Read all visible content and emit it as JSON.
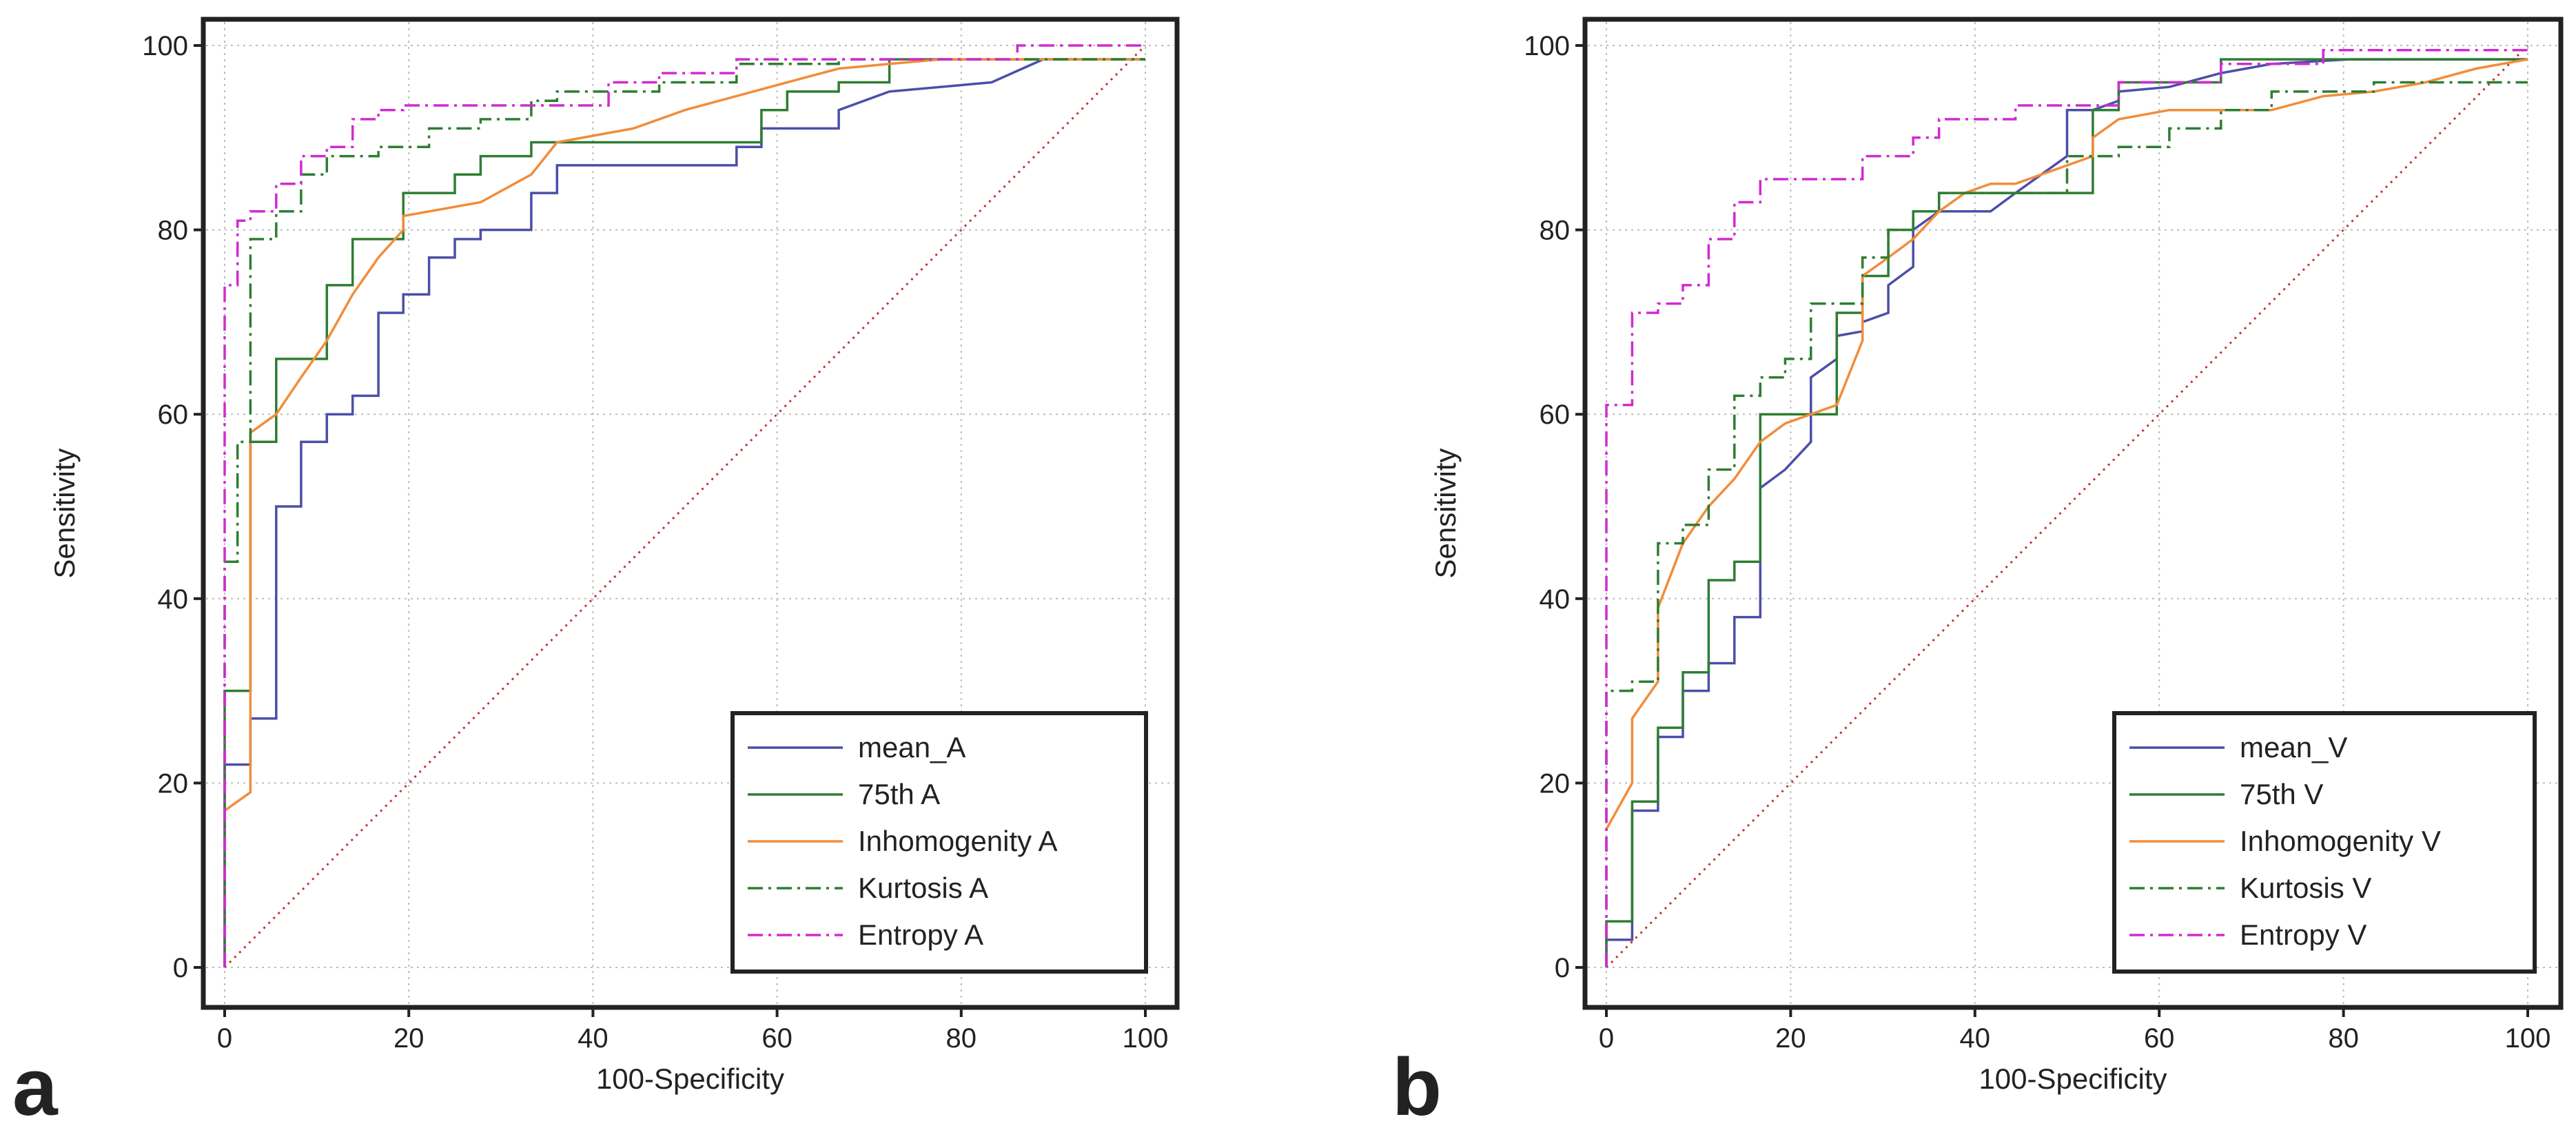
{
  "chart_data": [
    {
      "type": "line",
      "panel_label": "a",
      "xlabel": "100-Specificity",
      "ylabel": "Sensitivity",
      "xlim": [
        0,
        100
      ],
      "ylim": [
        0,
        100
      ],
      "xticks": [
        "0",
        "20",
        "40",
        "60",
        "80",
        "100"
      ],
      "yticks": [
        "0",
        "20",
        "40",
        "60",
        "80",
        "100"
      ],
      "grid": true,
      "legend_position": "bottom-right",
      "series": [
        {
          "name": "mean_A",
          "color": "#4b4fa8",
          "dash": "solid",
          "x": [
            0,
            0,
            2.8,
            2.8,
            5.6,
            5.6,
            8.3,
            8.3,
            11.1,
            11.1,
            13.9,
            13.9,
            16.7,
            16.7,
            19.4,
            19.4,
            22.2,
            22.2,
            25,
            25,
            27.8,
            27.8,
            33.3,
            33.3,
            36.1,
            36.1,
            55.6,
            55.6,
            58.3,
            58.3,
            66.7,
            66.7,
            72.2,
            83.3,
            88.9,
            100
          ],
          "y": [
            0,
            22,
            22,
            27,
            27,
            50,
            50,
            57,
            57,
            60,
            60,
            62,
            62,
            71,
            71,
            73,
            73,
            77,
            77,
            79,
            79,
            80,
            80,
            84,
            84,
            87,
            87,
            89,
            89,
            91,
            91,
            93,
            95,
            96,
            98.5,
            98.5
          ]
        },
        {
          "name": "75th A",
          "color": "#2e7d32",
          "dash": "solid",
          "x": [
            0,
            0,
            2.8,
            2.8,
            5.6,
            5.6,
            11.1,
            11.1,
            13.9,
            13.9,
            19.4,
            19.4,
            25,
            25,
            27.8,
            27.8,
            33.3,
            33.3,
            58.3,
            58.3,
            61.1,
            61.1,
            66.7,
            66.7,
            72.2,
            72.2,
            100
          ],
          "y": [
            0,
            30,
            30,
            57,
            57,
            66,
            66,
            74,
            74,
            79,
            79,
            84,
            84,
            86,
            86,
            88,
            88,
            89.5,
            89.5,
            93,
            93,
            95,
            95,
            96,
            96,
            98.5,
            98.5
          ]
        },
        {
          "name": "Inhomogenity A",
          "color": "#f28c3a",
          "dash": "solid",
          "x": [
            0,
            2.8,
            2.8,
            5.6,
            8.3,
            11.1,
            13.9,
            16.7,
            19.4,
            19.4,
            22.2,
            27.8,
            33.3,
            36.1,
            44.4,
            50,
            61.1,
            66.7,
            72.2,
            77.8,
            100
          ],
          "y": [
            17,
            19,
            58,
            60,
            64,
            68,
            73,
            77,
            80,
            81.5,
            82,
            83,
            86,
            89.5,
            91,
            93,
            96,
            97.5,
            98,
            98.5,
            98.5
          ]
        },
        {
          "name": "Kurtosis A",
          "color": "#2e7d32",
          "dash": "dashdot",
          "x": [
            0,
            0,
            1.4,
            1.4,
            2.8,
            2.8,
            5.6,
            5.6,
            8.3,
            8.3,
            11.1,
            11.1,
            16.7,
            16.7,
            22.2,
            22.2,
            27.8,
            27.8,
            33.3,
            33.3,
            36.1,
            36.1,
            47.2,
            47.2,
            55.6,
            55.6,
            66.7,
            66.7,
            100
          ],
          "y": [
            0,
            44,
            44,
            57,
            57,
            79,
            79,
            82,
            82,
            86,
            86,
            88,
            88,
            89,
            89,
            91,
            91,
            92,
            92,
            94,
            94,
            95,
            95,
            96,
            96,
            98,
            98,
            98.5,
            98.5
          ]
        },
        {
          "name": "Entropy A",
          "color": "#d12ad1",
          "dash": "dashdot",
          "x": [
            0,
            0,
            1.4,
            1.4,
            2.8,
            2.8,
            5.6,
            5.6,
            8.3,
            8.3,
            11.1,
            11.1,
            13.9,
            13.9,
            16.7,
            16.7,
            19.4,
            19.4,
            41.7,
            41.7,
            47.2,
            47.2,
            55.6,
            55.6,
            86.1,
            86.1,
            100
          ],
          "y": [
            0,
            74,
            74,
            81,
            81,
            82,
            82,
            85,
            85,
            88,
            88,
            89,
            89,
            92,
            92,
            93,
            93,
            93.5,
            93.5,
            96,
            96,
            97,
            97,
            98.5,
            98.5,
            100,
            100
          ]
        },
        {
          "name": "",
          "color": "#c83232",
          "dash": "dotted",
          "x": [
            0,
            100
          ],
          "y": [
            0,
            100
          ]
        }
      ]
    },
    {
      "type": "line",
      "panel_label": "b",
      "xlabel": "100-Specificity",
      "ylabel": "Sensitivity",
      "xlim": [
        0,
        100
      ],
      "ylim": [
        0,
        100
      ],
      "xticks": [
        "0",
        "20",
        "40",
        "60",
        "80",
        "100"
      ],
      "yticks": [
        "0",
        "20",
        "40",
        "60",
        "80",
        "100"
      ],
      "grid": true,
      "legend_position": "bottom-right",
      "series": [
        {
          "name": "mean_V",
          "color": "#4b4fa8",
          "dash": "solid",
          "x": [
            0,
            0,
            2.8,
            2.8,
            5.6,
            5.6,
            8.3,
            8.3,
            11.1,
            11.1,
            13.9,
            13.9,
            16.7,
            16.7,
            19.4,
            22.2,
            22.2,
            25,
            25,
            27.8,
            27.8,
            30.6,
            30.6,
            33.3,
            33.3,
            36.1,
            38.9,
            41.7,
            44.4,
            47.2,
            50,
            50,
            52.8,
            55.6,
            55.6,
            61.1,
            66.7,
            72.2,
            80.6,
            100
          ],
          "y": [
            0,
            3,
            3,
            17,
            17,
            25,
            25,
            30,
            30,
            33,
            33,
            38,
            38,
            52,
            54,
            57,
            64,
            66,
            68.5,
            69,
            70,
            71,
            74,
            76,
            80,
            82,
            82,
            82,
            84,
            86,
            88,
            93,
            93,
            94,
            95,
            95.5,
            97,
            98,
            98.5,
            98.5
          ]
        },
        {
          "name": "75th V",
          "color": "#2e7d32",
          "dash": "solid",
          "x": [
            0,
            0,
            2.8,
            2.8,
            5.6,
            5.6,
            8.3,
            8.3,
            11.1,
            11.1,
            13.9,
            13.9,
            16.7,
            16.7,
            25,
            25,
            27.8,
            27.8,
            30.6,
            30.6,
            33.3,
            33.3,
            36.1,
            36.1,
            52.8,
            52.8,
            55.6,
            55.6,
            66.7,
            66.7,
            100
          ],
          "y": [
            0,
            5,
            5,
            18,
            18,
            26,
            26,
            32,
            32,
            42,
            42,
            44,
            44,
            60,
            60,
            71,
            71,
            75,
            75,
            80,
            80,
            82,
            82,
            84,
            84,
            93,
            93,
            96,
            96,
            98.5,
            98.5
          ]
        },
        {
          "name": "Inhomogenity V",
          "color": "#f28c3a",
          "dash": "solid",
          "x": [
            0,
            2.8,
            2.8,
            5.6,
            5.6,
            8.3,
            11.1,
            13.9,
            16.7,
            19.4,
            22.2,
            25,
            27.8,
            27.8,
            30.6,
            33.3,
            36.1,
            38.9,
            41.7,
            44.4,
            47.2,
            52.8,
            52.8,
            55.6,
            61.1,
            72.2,
            77.8,
            83.3,
            88.9,
            94.4,
            100
          ],
          "y": [
            15,
            20,
            27,
            31,
            39,
            46,
            50,
            53,
            57,
            59,
            60,
            61,
            68,
            75,
            77,
            79,
            82,
            84,
            85,
            85,
            86,
            88,
            90,
            92,
            93,
            93,
            94.5,
            95,
            96,
            97.5,
            98.5
          ]
        },
        {
          "name": "Kurtosis V",
          "color": "#2e7d32",
          "dash": "dashdot",
          "x": [
            0,
            0,
            2.8,
            2.8,
            5.6,
            5.6,
            8.3,
            8.3,
            11.1,
            11.1,
            13.9,
            13.9,
            16.7,
            16.7,
            19.4,
            19.4,
            22.2,
            22.2,
            27.8,
            27.8,
            30.6,
            30.6,
            33.3,
            33.3,
            36.1,
            36.1,
            50,
            50,
            55.6,
            55.6,
            61.1,
            61.1,
            66.7,
            66.7,
            72.2,
            72.2,
            83.3,
            83.3,
            100
          ],
          "y": [
            0,
            30,
            30,
            31,
            31,
            46,
            46,
            48,
            48,
            54,
            54,
            62,
            62,
            64,
            64,
            66,
            66,
            72,
            72,
            77,
            77,
            80,
            80,
            82,
            82,
            84,
            84,
            88,
            88,
            89,
            89,
            91,
            91,
            93,
            93,
            95,
            95,
            96,
            96
          ]
        },
        {
          "name": "Entropy V",
          "color": "#d12ad1",
          "dash": "dashdot",
          "x": [
            0,
            0,
            2.8,
            2.8,
            5.6,
            5.6,
            8.3,
            8.3,
            11.1,
            11.1,
            13.9,
            13.9,
            16.7,
            16.7,
            27.8,
            27.8,
            33.3,
            33.3,
            36.1,
            36.1,
            44.4,
            44.4,
            55.6,
            55.6,
            66.7,
            66.7,
            77.8,
            77.8,
            100
          ],
          "y": [
            0,
            61,
            61,
            71,
            71,
            72,
            72,
            74,
            74,
            79,
            79,
            83,
            83,
            85.5,
            85.5,
            88,
            88,
            90,
            90,
            92,
            92,
            93.5,
            93.5,
            96,
            96,
            98,
            98,
            99.5,
            99.5
          ]
        },
        {
          "name": "",
          "color": "#c83232",
          "dash": "dotted",
          "x": [
            0,
            100
          ],
          "y": [
            0,
            100
          ]
        }
      ]
    }
  ]
}
